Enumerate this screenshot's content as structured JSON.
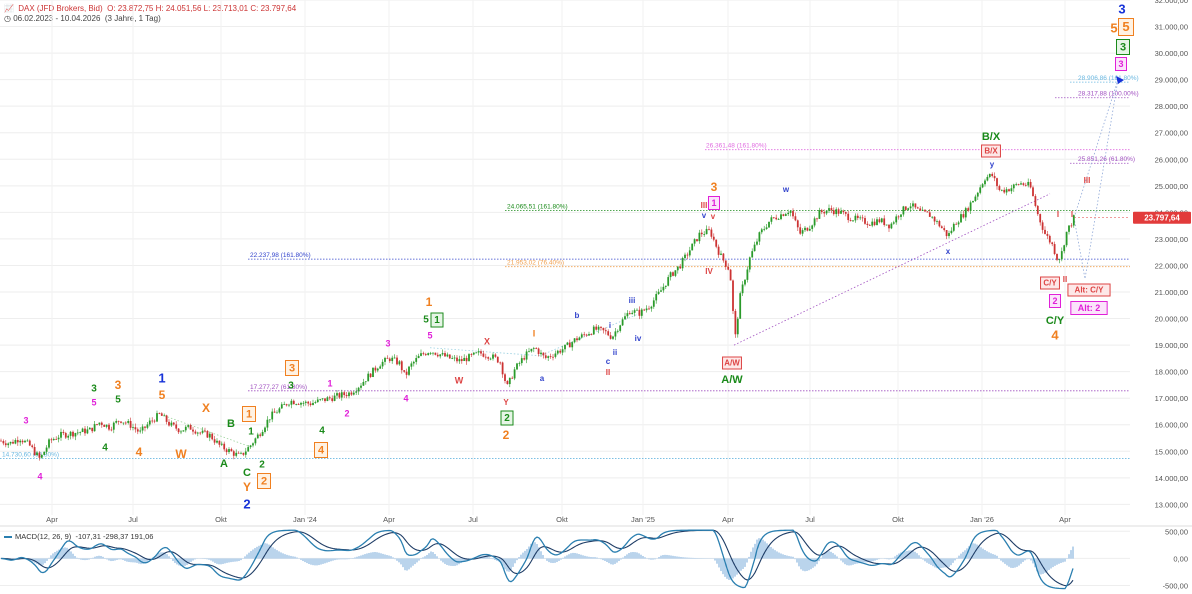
{
  "header": {
    "instrument": "DAX (JFD Brokers, Bid)",
    "ohlc": "O: 23.872,75  H: 24.051,56  L: 23.713,01  C: 23.797,64",
    "range": "06.02.2023 - 10.04.2026",
    "period": "(3 Jahre, 1 Tag)"
  },
  "chart_data": {
    "type": "candlestick",
    "x_tick_labels": [
      "Apr",
      "Jul",
      "Okt",
      "Jan '24",
      "Apr",
      "Jul",
      "Okt",
      "Jan '25",
      "Apr",
      "Jul",
      "Okt",
      "Jan '26",
      "Apr"
    ],
    "y_tick_labels": [
      "13.000,00",
      "14.000,00",
      "15.000,00",
      "16.000,00",
      "17.000,00",
      "18.000,00",
      "19.000,00",
      "20.000,00",
      "21.000,00",
      "22.000,00",
      "23.000,00",
      "24.000,00",
      "25.000,00",
      "26.000,00",
      "27.000,00",
      "28.000,00",
      "29.000,00",
      "30.000,00",
      "31.000,00",
      "32.000,00"
    ],
    "y_tick_values": [
      13000,
      14000,
      15000,
      16000,
      17000,
      18000,
      19000,
      20000,
      21000,
      22000,
      23000,
      24000,
      25000,
      26000,
      27000,
      28000,
      29000,
      30000,
      31000,
      32000
    ],
    "ylim": [
      12600,
      32000
    ],
    "last_price_label": "23.797,64",
    "last_price": 23797.64,
    "price_path": [
      [
        0,
        15400
      ],
      [
        10,
        15300
      ],
      [
        20,
        15500
      ],
      [
        30,
        15200
      ],
      [
        40,
        14700
      ],
      [
        50,
        15400
      ],
      [
        60,
        15600
      ],
      [
        75,
        15700
      ],
      [
        90,
        15800
      ],
      [
        100,
        16100
      ],
      [
        110,
        15900
      ],
      [
        120,
        16200
      ],
      [
        130,
        16000
      ],
      [
        140,
        15700
      ],
      [
        150,
        16100
      ],
      [
        160,
        16400
      ],
      [
        170,
        16000
      ],
      [
        180,
        15800
      ],
      [
        190,
        15900
      ],
      [
        200,
        15700
      ],
      [
        210,
        15600
      ],
      [
        220,
        15200
      ],
      [
        230,
        15000
      ],
      [
        240,
        14800
      ],
      [
        250,
        15200
      ],
      [
        260,
        15700
      ],
      [
        270,
        16300
      ],
      [
        280,
        16600
      ],
      [
        290,
        16900
      ],
      [
        300,
        16850
      ],
      [
        310,
        16800
      ],
      [
        320,
        16900
      ],
      [
        330,
        17000
      ],
      [
        340,
        17100
      ],
      [
        350,
        17200
      ],
      [
        360,
        17500
      ],
      [
        370,
        17900
      ],
      [
        380,
        18300
      ],
      [
        390,
        18500
      ],
      [
        400,
        18300
      ],
      [
        405,
        17800
      ],
      [
        410,
        18200
      ],
      [
        420,
        18600
      ],
      [
        430,
        18800
      ],
      [
        440,
        18650
      ],
      [
        450,
        18500
      ],
      [
        460,
        18400
      ],
      [
        470,
        18550
      ],
      [
        480,
        18700
      ],
      [
        490,
        18600
      ],
      [
        500,
        18400
      ],
      [
        507,
        17400
      ],
      [
        515,
        18100
      ],
      [
        525,
        18600
      ],
      [
        535,
        18900
      ],
      [
        545,
        18500
      ],
      [
        555,
        18700
      ],
      [
        565,
        18900
      ],
      [
        575,
        19200
      ],
      [
        585,
        19400
      ],
      [
        595,
        19600
      ],
      [
        605,
        19500
      ],
      [
        612,
        19300
      ],
      [
        620,
        19800
      ],
      [
        630,
        20300
      ],
      [
        640,
        20200
      ],
      [
        650,
        20500
      ],
      [
        660,
        21000
      ],
      [
        670,
        21600
      ],
      [
        680,
        22000
      ],
      [
        690,
        22600
      ],
      [
        700,
        23200
      ],
      [
        710,
        23300
      ],
      [
        720,
        22400
      ],
      [
        730,
        21800
      ],
      [
        735,
        19200
      ],
      [
        740,
        20800
      ],
      [
        750,
        22300
      ],
      [
        760,
        23200
      ],
      [
        770,
        23700
      ],
      [
        780,
        23900
      ],
      [
        790,
        24100
      ],
      [
        800,
        23200
      ],
      [
        810,
        23500
      ],
      [
        820,
        24000
      ],
      [
        830,
        24100
      ],
      [
        840,
        24000
      ],
      [
        850,
        23800
      ],
      [
        860,
        23700
      ],
      [
        870,
        23600
      ],
      [
        880,
        23700
      ],
      [
        890,
        23500
      ],
      [
        900,
        24000
      ],
      [
        910,
        24300
      ],
      [
        920,
        24000
      ],
      [
        930,
        23900
      ],
      [
        940,
        23500
      ],
      [
        948,
        23100
      ],
      [
        955,
        23600
      ],
      [
        965,
        24000
      ],
      [
        975,
        24600
      ],
      [
        985,
        25300
      ],
      [
        992,
        25400
      ],
      [
        1000,
        24800
      ],
      [
        1010,
        24900
      ],
      [
        1020,
        25100
      ],
      [
        1030,
        25000
      ],
      [
        1038,
        23900
      ],
      [
        1045,
        23200
      ],
      [
        1052,
        22800
      ],
      [
        1058,
        22200
      ],
      [
        1062,
        22500
      ],
      [
        1066,
        23200
      ],
      [
        1070,
        23500
      ],
      [
        1074,
        23800
      ]
    ],
    "annotations": [
      {
        "text": "3",
        "x": 26,
        "y": 421,
        "color": "#e020d8",
        "size": 9
      },
      {
        "text": "4",
        "x": 40,
        "y": 477,
        "color": "#e020d8",
        "size": 9
      },
      {
        "text": "3",
        "x": 94,
        "y": 389,
        "color": "#1a8a1a",
        "size": 10
      },
      {
        "text": "5",
        "x": 94,
        "y": 403,
        "color": "#e020d8",
        "size": 9
      },
      {
        "text": "4",
        "x": 105,
        "y": 448,
        "color": "#1a8a1a",
        "size": 10
      },
      {
        "text": "3",
        "x": 118,
        "y": 386,
        "color": "#f08020",
        "size": 12
      },
      {
        "text": "5",
        "x": 118,
        "y": 400,
        "color": "#1a8a1a",
        "size": 10
      },
      {
        "text": "4",
        "x": 139,
        "y": 453,
        "color": "#f08020",
        "size": 12
      },
      {
        "text": "1",
        "x": 162,
        "y": 379,
        "color": "#1733d8",
        "size": 13
      },
      {
        "text": "5",
        "x": 162,
        "y": 396,
        "color": "#f08020",
        "size": 12
      },
      {
        "text": "W",
        "x": 181,
        "y": 455,
        "color": "#f08020",
        "size": 12
      },
      {
        "text": "X",
        "x": 206,
        "y": 409,
        "color": "#f08020",
        "size": 12
      },
      {
        "text": "B",
        "x": 231,
        "y": 424,
        "color": "#1a8a1a",
        "size": 11
      },
      {
        "text": "A",
        "x": 224,
        "y": 464,
        "color": "#1a8a1a",
        "size": 11
      },
      {
        "text": "1",
        "x": 251,
        "y": 432,
        "color": "#1a8a1a",
        "size": 10
      },
      {
        "text": "C",
        "x": 247,
        "y": 473,
        "color": "#1a8a1a",
        "size": 11
      },
      {
        "text": "Y",
        "x": 247,
        "y": 488,
        "color": "#f08020",
        "size": 12
      },
      {
        "text": "2",
        "x": 247,
        "y": 505,
        "color": "#1733d8",
        "size": 13
      },
      {
        "text": "2",
        "x": 262,
        "y": 465,
        "color": "#1a8a1a",
        "size": 10
      },
      {
        "text": "3",
        "x": 291,
        "y": 386,
        "color": "#1a8a1a",
        "size": 10
      },
      {
        "text": "1",
        "x": 330,
        "y": 384,
        "color": "#e020d8",
        "size": 9
      },
      {
        "text": "2",
        "x": 347,
        "y": 414,
        "color": "#e020d8",
        "size": 9
      },
      {
        "text": "4",
        "x": 322,
        "y": 431,
        "color": "#1a8a1a",
        "size": 10
      },
      {
        "text": "3",
        "x": 388,
        "y": 344,
        "color": "#e020d8",
        "size": 9
      },
      {
        "text": "4",
        "x": 406,
        "y": 399,
        "color": "#e020d8",
        "size": 9
      },
      {
        "text": "1",
        "x": 429,
        "y": 303,
        "color": "#f08020",
        "size": 12
      },
      {
        "text": "5",
        "x": 426,
        "y": 320,
        "color": "#1a8a1a",
        "size": 10
      },
      {
        "text": "5",
        "x": 430,
        "y": 336,
        "color": "#e020d8",
        "size": 9
      },
      {
        "text": "W",
        "x": 459,
        "y": 381,
        "color": "#d44",
        "size": 9
      },
      {
        "text": "X",
        "x": 487,
        "y": 342,
        "color": "#d44",
        "size": 9
      },
      {
        "text": "Y",
        "x": 506,
        "y": 403,
        "color": "#d44",
        "size": 8
      },
      {
        "text": "2",
        "x": 506,
        "y": 436,
        "color": "#f08020",
        "size": 12
      },
      {
        "text": "I",
        "x": 534,
        "y": 334,
        "color": "#f08020",
        "size": 9
      },
      {
        "text": "a",
        "x": 542,
        "y": 379,
        "color": "#3344cc",
        "size": 8
      },
      {
        "text": "b",
        "x": 577,
        "y": 316,
        "color": "#3344cc",
        "size": 8
      },
      {
        "text": "c",
        "x": 608,
        "y": 362,
        "color": "#3344cc",
        "size": 8
      },
      {
        "text": "II",
        "x": 608,
        "y": 373,
        "color": "#d44",
        "size": 8
      },
      {
        "text": "i",
        "x": 610,
        "y": 326,
        "color": "#3344cc",
        "size": 8
      },
      {
        "text": "ii",
        "x": 615,
        "y": 353,
        "color": "#3344cc",
        "size": 8
      },
      {
        "text": "iii",
        "x": 632,
        "y": 301,
        "color": "#3344cc",
        "size": 8
      },
      {
        "text": "iv",
        "x": 638,
        "y": 339,
        "color": "#3344cc",
        "size": 8
      },
      {
        "text": "3",
        "x": 714,
        "y": 188,
        "color": "#f08020",
        "size": 12
      },
      {
        "text": "III",
        "x": 704,
        "y": 206,
        "color": "#d44",
        "size": 8
      },
      {
        "text": "v",
        "x": 704,
        "y": 216,
        "color": "#3344cc",
        "size": 8
      },
      {
        "text": "v",
        "x": 713,
        "y": 217,
        "color": "#d44",
        "size": 8
      },
      {
        "text": "IV",
        "x": 709,
        "y": 272,
        "color": "#d44",
        "size": 8
      },
      {
        "text": "A/W",
        "x": 732,
        "y": 380,
        "color": "#1a8a1a",
        "size": 11
      },
      {
        "text": "w",
        "x": 786,
        "y": 190,
        "color": "#3344cc",
        "size": 8
      },
      {
        "text": "x",
        "x": 948,
        "y": 252,
        "color": "#3344cc",
        "size": 8
      },
      {
        "text": "B/X",
        "x": 991,
        "y": 137,
        "color": "#1a8a1a",
        "size": 11
      },
      {
        "text": "y",
        "x": 992,
        "y": 165,
        "color": "#3344cc",
        "size": 8
      },
      {
        "text": "III",
        "x": 1087,
        "y": 181,
        "color": "#d44",
        "size": 8
      },
      {
        "text": "I",
        "x": 1058,
        "y": 215,
        "color": "#d44",
        "size": 8
      },
      {
        "text": "I",
        "x": 1072,
        "y": 215,
        "color": "#d44",
        "size": 8
      },
      {
        "text": "II",
        "x": 1065,
        "y": 280,
        "color": "#d44",
        "size": 8
      },
      {
        "text": "C/Y",
        "x": 1055,
        "y": 321,
        "color": "#1a8a1a",
        "size": 11
      },
      {
        "text": "4",
        "x": 1055,
        "y": 336,
        "color": "#f08020",
        "size": 13
      },
      {
        "text": "3",
        "x": 1122,
        "y": 10,
        "color": "#1733d8",
        "size": 13
      },
      {
        "text": "5",
        "x": 1114,
        "y": 29,
        "color": "#f08020",
        "size": 13
      }
    ],
    "boxed_annotations": [
      {
        "text": "1",
        "x": 249,
        "y": 414,
        "color": "#f08020",
        "size": 11
      },
      {
        "text": "2",
        "x": 264,
        "y": 481,
        "color": "#f08020",
        "size": 11
      },
      {
        "text": "3",
        "x": 292,
        "y": 368,
        "color": "#f08020",
        "size": 11
      },
      {
        "text": "4",
        "x": 321,
        "y": 450,
        "color": "#f08020",
        "size": 11
      },
      {
        "text": "1",
        "x": 437,
        "y": 320,
        "color": "#1a8a1a",
        "size": 10
      },
      {
        "text": "2",
        "x": 507,
        "y": 418,
        "color": "#1a8a1a",
        "size": 10
      },
      {
        "text": "1",
        "x": 714,
        "y": 203,
        "color": "#e020d8",
        "size": 9
      },
      {
        "text": "A/W",
        "x": 732,
        "y": 363,
        "color": "#d44",
        "size": 8
      },
      {
        "text": "B/X",
        "x": 991,
        "y": 151,
        "color": "#d44",
        "size": 8
      },
      {
        "text": "C/Y",
        "x": 1050,
        "y": 283,
        "color": "#d44",
        "size": 8
      },
      {
        "text": "2",
        "x": 1055,
        "y": 301,
        "color": "#e020d8",
        "size": 9
      },
      {
        "text": "Alt: C/Y",
        "x": 1089,
        "y": 290,
        "color": "#d44",
        "size": 8
      },
      {
        "text": "Alt: 2",
        "x": 1089,
        "y": 308,
        "color": "#e020d8",
        "size": 9
      },
      {
        "text": "5",
        "x": 1126,
        "y": 27,
        "color": "#f08020",
        "size": 13
      },
      {
        "text": "3",
        "x": 1123,
        "y": 47,
        "color": "#1a8a1a",
        "size": 11
      },
      {
        "text": "3",
        "x": 1121,
        "y": 64,
        "color": "#e020d8",
        "size": 9
      }
    ],
    "levels": [
      {
        "label": "28.906,86 (161.80%)",
        "value": 28906.86,
        "x_start": 1070,
        "color": "#69b7e0"
      },
      {
        "label": "28.317,88 (100.00%)",
        "value": 28317.88,
        "x_start": 1055,
        "color": "#a050c0"
      },
      {
        "label": "26.361,48 (161.80%)",
        "value": 26361.48,
        "x_start": 705,
        "color": "#e06be0"
      },
      {
        "label": "25.851,26 (61.80%)",
        "value": 25851.26,
        "x_start": 1070,
        "color": "#a050c0"
      },
      {
        "label": "24.065,51 (161.80%)",
        "value": 24065.51,
        "x_start": 505,
        "color": "#1a8a1a"
      },
      {
        "label": "22.237,98 (161.80%)",
        "value": 22237.98,
        "x_start": 248,
        "color": "#3344cc"
      },
      {
        "label": "21.953,02 (76.40%)",
        "value": 21953.02,
        "x_start": 505,
        "color": "#f0a050"
      },
      {
        "label": "17.277,27 (61.80%)",
        "value": 17277.27,
        "x_start": 248,
        "color": "#a050c0"
      },
      {
        "label": "14.730,60 (63.80%)",
        "value": 14730.6,
        "x_start": 0,
        "color": "#69b7e0"
      }
    ],
    "macd": {
      "label": "MACD(12, 26, 9)",
      "values_label": "-107,31  -298,37  191,06",
      "macd_value": -107.31,
      "signal_value": -298.37,
      "histogram_value": 191.06,
      "y_tick_labels": [
        "500,00",
        "0,00",
        "-500,00"
      ],
      "y_tick_values": [
        500,
        0,
        -500
      ],
      "ylim": [
        -620,
        560
      ]
    }
  },
  "colors": {
    "up": "#2a9a2a",
    "down": "#cc3333",
    "last_price_bg": "#e23b3b",
    "macd_line": "#2a7fb0",
    "signal_line": "#1f3d66",
    "histogram": "#a9c9e8"
  }
}
